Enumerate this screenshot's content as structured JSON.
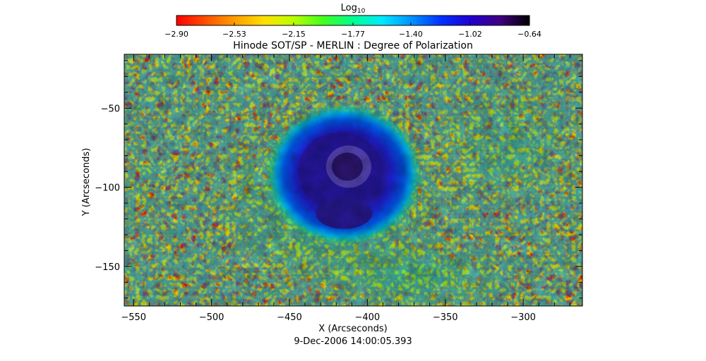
{
  "chart_data": {
    "type": "heatmap",
    "title": "Hinode SOT/SP - MERLIN : Degree of Polarization",
    "xlabel": "X (Arcseconds)",
    "ylabel": "Y (Arcseconds)",
    "timestamp": "9-Dec-2006 14:00:05.393",
    "xlim": [
      -556,
      -262
    ],
    "ylim": [
      -175,
      -16
    ],
    "x_ticks": [
      -550,
      -500,
      -450,
      -400,
      -350,
      -300
    ],
    "y_ticks": [
      -50,
      -100,
      -150
    ],
    "x_tick_labels": [
      "−550",
      "−500",
      "−450",
      "−400",
      "−350",
      "−300"
    ],
    "y_tick_labels": [
      "−50",
      "−100",
      "−150"
    ],
    "colorbar": {
      "label": "Log",
      "label_subscript": "10",
      "range": [
        -2.9,
        -0.64
      ],
      "ticks": [
        -2.9,
        -2.53,
        -2.15,
        -1.77,
        -1.4,
        -1.02,
        -0.64
      ],
      "tick_labels": [
        "−2.90",
        "−2.53",
        "−2.15",
        "−1.77",
        "−1.40",
        "−1.02",
        "−0.64"
      ],
      "colormap": [
        "#ff0000",
        "#ff5000",
        "#ffa000",
        "#ffe000",
        "#b8ff00",
        "#40ff20",
        "#00ff90",
        "#00e8ff",
        "#0090ff",
        "#0030ff",
        "#2000d0",
        "#400080",
        "#000000"
      ]
    },
    "features": [
      {
        "name": "sunspot umbra",
        "x": -412,
        "y": -87,
        "level": -0.75
      },
      {
        "name": "sunspot penumbra",
        "x": -415,
        "y": -92,
        "level": -1.05
      }
    ]
  }
}
